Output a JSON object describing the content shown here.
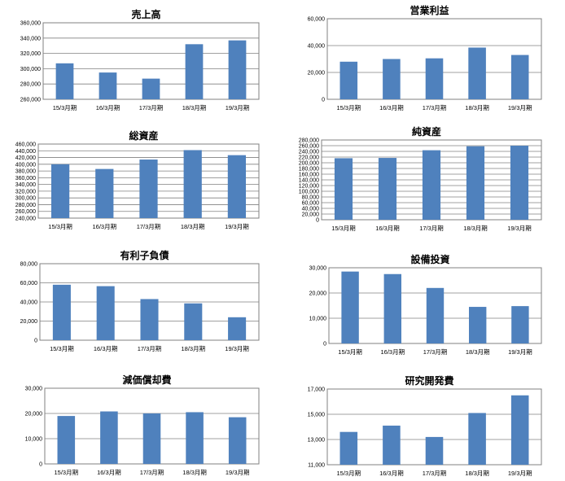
{
  "colors": {
    "bar": "#4f81bd",
    "grid": "#808080",
    "axis": "#808080"
  },
  "chart_data": [
    {
      "type": "bar",
      "title": "売上高",
      "categories": [
        "15/3月期",
        "16/3月期",
        "17/3月期",
        "18/3月期",
        "19/3月期"
      ],
      "values": [
        307000,
        295000,
        287000,
        332000,
        337000
      ],
      "ylim": [
        260000,
        360000
      ],
      "step": 20000,
      "ticks": [
        "260,000",
        "280,000",
        "300,000",
        "320,000",
        "340,000",
        "360,000"
      ]
    },
    {
      "type": "bar",
      "title": "営業利益",
      "categories": [
        "15/3月期",
        "16/3月期",
        "17/3月期",
        "18/3月期",
        "19/3月期"
      ],
      "values": [
        28000,
        30000,
        30500,
        38500,
        33000
      ],
      "ylim": [
        0,
        60000
      ],
      "step": 20000,
      "ticks": [
        "0",
        "20,000",
        "40,000",
        "60,000"
      ]
    },
    {
      "type": "bar",
      "title": "総資産",
      "categories": [
        "15/3月期",
        "16/3月期",
        "17/3月期",
        "18/3月期",
        "19/3月期"
      ],
      "values": [
        400000,
        386000,
        414000,
        442000,
        427000
      ],
      "ylim": [
        240000,
        460000
      ],
      "step": 20000,
      "ticks": [
        "240,000",
        "260,000",
        "280,000",
        "300,000",
        "320,000",
        "340,000",
        "360,000",
        "380,000",
        "400,000",
        "420,000",
        "440,000",
        "460,000"
      ]
    },
    {
      "type": "bar",
      "title": "純資産",
      "categories": [
        "15/3月期",
        "16/3月期",
        "17/3月期",
        "18/3月期",
        "19/3月期"
      ],
      "values": [
        216000,
        217000,
        244000,
        258000,
        260000
      ],
      "ylim": [
        0,
        280000
      ],
      "step": 20000,
      "ticks": [
        "0",
        "20,000",
        "40,000",
        "60,000",
        "80,000",
        "100,000",
        "120,000",
        "140,000",
        "160,000",
        "180,000",
        "200,000",
        "220,000",
        "240,000",
        "260,000",
        "280,000"
      ]
    },
    {
      "type": "bar",
      "title": "有利子負債",
      "categories": [
        "15/3月期",
        "16/3月期",
        "17/3月期",
        "18/3月期",
        "19/3月期"
      ],
      "values": [
        58000,
        56500,
        43000,
        38500,
        24000
      ],
      "ylim": [
        0,
        80000
      ],
      "step": 20000,
      "ticks": [
        "0",
        "20,000",
        "40,000",
        "60,000",
        "80,000"
      ]
    },
    {
      "type": "bar",
      "title": "設備投資",
      "categories": [
        "15/3月期",
        "16/3月期",
        "17/3月期",
        "18/3月期",
        "19/3月期"
      ],
      "values": [
        28500,
        27500,
        22000,
        14500,
        14800
      ],
      "ylim": [
        0,
        30000
      ],
      "step": 10000,
      "ticks": [
        "0",
        "10,000",
        "20,000",
        "30,000"
      ]
    },
    {
      "type": "bar",
      "title": "減価償却費",
      "categories": [
        "15/3月期",
        "16/3月期",
        "17/3月期",
        "18/3月期",
        "19/3月期"
      ],
      "values": [
        19000,
        20800,
        20000,
        20500,
        18500
      ],
      "ylim": [
        0,
        30000
      ],
      "step": 10000,
      "ticks": [
        "0",
        "10,000",
        "20,000",
        "30,000"
      ]
    },
    {
      "type": "bar",
      "title": "研究開発費",
      "categories": [
        "15/3月期",
        "16/3月期",
        "17/3月期",
        "18/3月期",
        "19/3月期"
      ],
      "values": [
        13600,
        14100,
        13200,
        15100,
        16500
      ],
      "ylim": [
        11000,
        17000
      ],
      "step": 2000,
      "ticks": [
        "11,000",
        "13,000",
        "15,000",
        "17,000"
      ]
    }
  ]
}
